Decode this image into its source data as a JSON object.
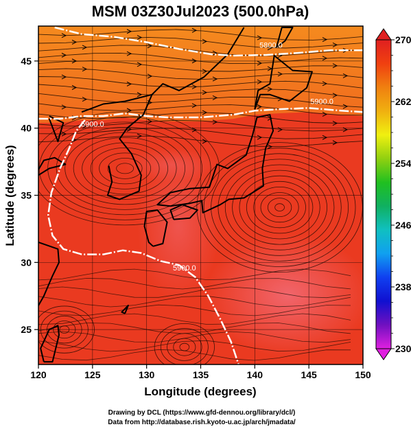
{
  "chart_data": {
    "type": "heatmap",
    "title": "MSM 03Z30Jul2023 (500.0hPa)",
    "xlabel": "Longitude (degrees)",
    "ylabel": "Latitude  (degrees)",
    "xlim": [
      120,
      150
    ],
    "ylim": [
      22.4,
      47.6
    ],
    "xticks": [
      120,
      125,
      130,
      135,
      140,
      145,
      150
    ],
    "yticks": [
      25,
      30,
      35,
      40,
      45
    ],
    "grid": true,
    "colorbar": {
      "min": 230,
      "max": 270,
      "labels": [
        230,
        238,
        246,
        254,
        262,
        270
      ],
      "extend": "both",
      "colors": [
        "#e020e0",
        "#7010c0",
        "#1010d0",
        "#1040f0",
        "#10a0f0",
        "#10c0c0",
        "#10b060",
        "#20c020",
        "#90d010",
        "#f0f010",
        "#f0b010",
        "#f08010",
        "#f04010",
        "#e02020"
      ]
    },
    "field_colors": {
      "north_band": "#f27a1e",
      "south_region": "#ea3a20",
      "high_cell": "#f06070"
    },
    "contours": [
      {
        "label": "5800.0",
        "points": [
          [
            121.5,
            47.5
          ],
          [
            124,
            47.0
          ],
          [
            127,
            46.8
          ],
          [
            130,
            46.4
          ],
          [
            133,
            45.9
          ],
          [
            136,
            45.5
          ],
          [
            138,
            45.4
          ],
          [
            141,
            45.45
          ],
          [
            144,
            45.6
          ],
          [
            147,
            45.8
          ],
          [
            150,
            45.8
          ]
        ]
      },
      {
        "label": "5900.0",
        "points": [
          [
            120,
            40.7
          ],
          [
            122,
            40.7
          ],
          [
            124,
            40.9
          ],
          [
            126,
            40.9
          ],
          [
            128,
            41.1
          ],
          [
            130,
            40.9
          ],
          [
            132,
            40.8
          ],
          [
            135,
            40.8
          ],
          [
            138,
            41.0
          ],
          [
            140,
            41.3
          ],
          [
            142,
            41.4
          ],
          [
            145,
            41.5
          ],
          [
            148,
            41.3
          ],
          [
            150,
            41.2
          ]
        ]
      },
      {
        "label": "5900.0",
        "points": [
          [
            124.3,
            40.6
          ],
          [
            123.5,
            39.8
          ],
          [
            122.8,
            38.4
          ],
          [
            122.0,
            37.0
          ],
          [
            121.2,
            35.2
          ],
          [
            120.9,
            33.5
          ],
          [
            121.3,
            32.0
          ],
          [
            122.3,
            31.0
          ],
          [
            124.0,
            30.6
          ],
          [
            126.0,
            30.6
          ],
          [
            127.8,
            30.9
          ],
          [
            129.5,
            30.7
          ],
          [
            131.3,
            30.1
          ],
          [
            133.0,
            29.8
          ],
          [
            134.5,
            28.9
          ],
          [
            135.7,
            27.5
          ],
          [
            136.8,
            25.8
          ],
          [
            137.8,
            24.1
          ],
          [
            138.5,
            22.4
          ]
        ]
      }
    ],
    "contour_labels": [
      {
        "text": "5800.0",
        "x": 141.5,
        "y": 46.0
      },
      {
        "text": "5900.0",
        "x": 125.0,
        "y": 40.1
      },
      {
        "text": "5900.0",
        "x": 146.2,
        "y": 41.8
      },
      {
        "text": "5900.0",
        "x": 133.5,
        "y": 29.4
      }
    ],
    "vortex_centers": [
      {
        "x": 142.3,
        "y": 34.1
      },
      {
        "x": 122.4,
        "y": 25.0
      },
      {
        "x": 133.5,
        "y": 23.7
      }
    ]
  },
  "credits": {
    "line1": "Drawing by DCL (https://www.gfd-dennou.org/library/dcl/)",
    "line2": "Data from http://database.rish.kyoto-u.ac.jp/arch/jmadata/"
  }
}
